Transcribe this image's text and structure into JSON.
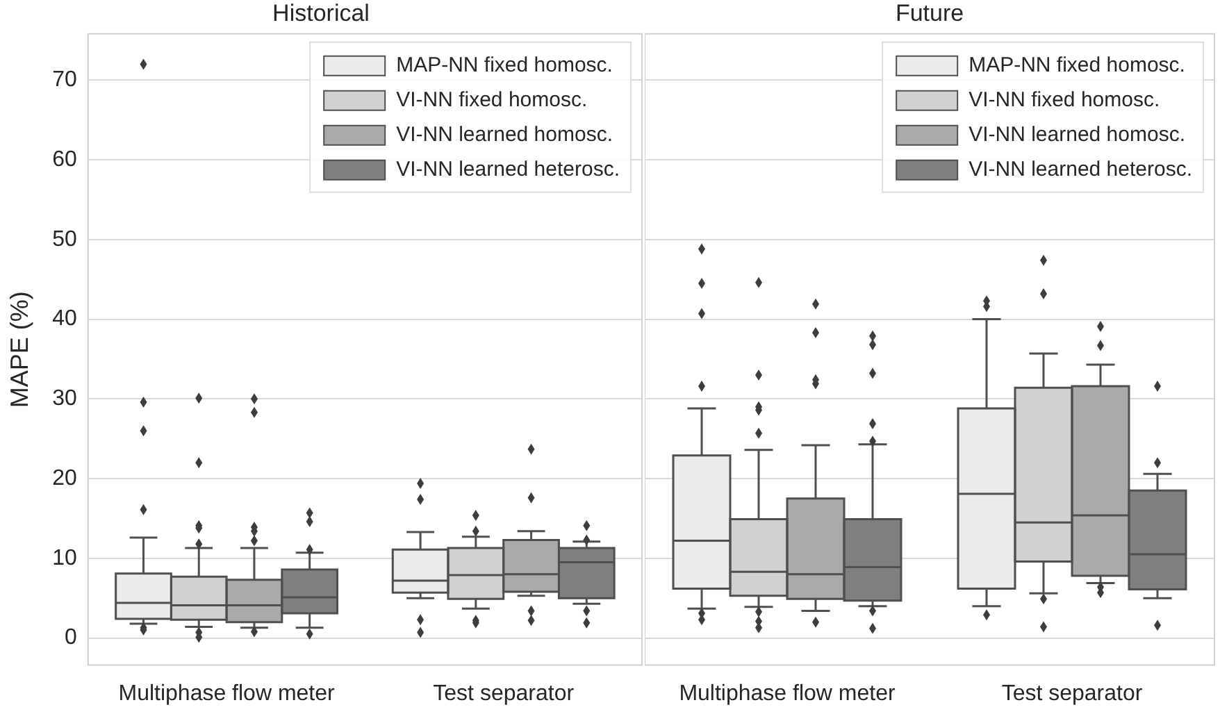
{
  "chart_data": [
    {
      "type": "box",
      "title": "Historical",
      "ylabel": "MAPE (%)",
      "categories": [
        "Multiphase flow meter",
        "Test separator"
      ],
      "ylim": [
        -3.4,
        75.8
      ],
      "yticks": [
        0,
        10,
        20,
        30,
        40,
        50,
        60,
        70
      ],
      "grid": "y",
      "legend": "top right",
      "series": [
        {
          "name": "MAP-NN fixed homosc.",
          "color": "#ebebeb",
          "boxes": [
            {
              "low": 1.8,
              "q1": 2.4,
              "median": 4.4,
              "q3": 8.1,
              "high": 12.6,
              "outliers": [
                72,
                29.6,
                26.0,
                16.1,
                1.3,
                1.0
              ]
            },
            {
              "low": 5.0,
              "q1": 5.7,
              "median": 7.2,
              "q3": 11.1,
              "high": 13.3,
              "outliers": [
                19.4,
                17.4,
                2.3,
                0.7
              ]
            }
          ]
        },
        {
          "name": "VI-NN fixed homosc.",
          "color": "#d1d1d1",
          "boxes": [
            {
              "low": 1.4,
              "q1": 2.3,
              "median": 4.1,
              "q3": 7.7,
              "high": 11.3,
              "outliers": [
                30.1,
                22.0,
                14.1,
                13.8,
                11.8,
                0.7,
                0.1
              ]
            },
            {
              "low": 3.7,
              "q1": 4.9,
              "median": 7.9,
              "q3": 11.3,
              "high": 12.7,
              "outliers": [
                15.4,
                13.4,
                2.2,
                1.9
              ]
            }
          ]
        },
        {
          "name": "VI-NN learned homosc.",
          "color": "#aaaaaa",
          "boxes": [
            {
              "low": 1.3,
              "q1": 2.0,
              "median": 4.1,
              "q3": 7.3,
              "high": 11.3,
              "outliers": [
                30.0,
                28.3,
                13.9,
                13.4,
                12.2,
                0.8
              ]
            },
            {
              "low": 5.3,
              "q1": 5.8,
              "median": 8.0,
              "q3": 12.3,
              "high": 13.4,
              "outliers": [
                23.7,
                17.6,
                3.4,
                2.2
              ]
            }
          ]
        },
        {
          "name": "VI-NN learned heterosc.",
          "color": "#7f7f7f",
          "boxes": [
            {
              "low": 1.3,
              "q1": 3.1,
              "median": 5.1,
              "q3": 8.6,
              "high": 10.7,
              "outliers": [
                15.7,
                14.6,
                11.1,
                0.5
              ]
            },
            {
              "low": 4.3,
              "q1": 5.0,
              "median": 9.5,
              "q3": 11.3,
              "high": 12.1,
              "outliers": [
                14.1,
                12.3,
                3.4,
                1.9
              ]
            }
          ]
        }
      ]
    },
    {
      "type": "box",
      "title": "Future",
      "categories": [
        "Multiphase flow meter",
        "Test separator"
      ],
      "ylim": [
        -3.4,
        75.8
      ],
      "yticks": [
        0,
        10,
        20,
        30,
        40,
        50,
        60,
        70
      ],
      "grid": "y",
      "legend": "top right",
      "tick_labels": "x",
      "series": [
        {
          "name": "MAP-NN fixed homosc.",
          "color": "#ebebeb",
          "boxes": [
            {
              "low": 3.7,
              "q1": 6.2,
              "median": 12.2,
              "q3": 22.9,
              "high": 28.8,
              "outliers": [
                48.8,
                44.5,
                40.7,
                31.6,
                3.1,
                2.3
              ]
            },
            {
              "low": 4.0,
              "q1": 6.2,
              "median": 18.1,
              "q3": 28.8,
              "high": 40.0,
              "outliers": [
                42.3,
                41.6,
                2.9
              ]
            }
          ]
        },
        {
          "name": "VI-NN fixed homosc.",
          "color": "#d1d1d1",
          "boxes": [
            {
              "low": 3.9,
              "q1": 5.3,
              "median": 8.3,
              "q3": 14.9,
              "high": 23.6,
              "outliers": [
                44.6,
                33.0,
                29.0,
                28.6,
                25.7,
                3.3,
                2.1,
                1.3
              ]
            },
            {
              "low": 5.6,
              "q1": 9.6,
              "median": 14.5,
              "q3": 31.4,
              "high": 35.7,
              "outliers": [
                47.4,
                43.2,
                4.9,
                1.4
              ]
            }
          ]
        },
        {
          "name": "VI-NN learned homosc.",
          "color": "#aaaaaa",
          "boxes": [
            {
              "low": 3.4,
              "q1": 4.9,
              "median": 8.0,
              "q3": 17.5,
              "high": 24.2,
              "outliers": [
                41.9,
                38.3,
                32.4,
                31.9,
                2.0
              ]
            },
            {
              "low": 6.9,
              "q1": 7.8,
              "median": 15.4,
              "q3": 31.6,
              "high": 34.3,
              "outliers": [
                39.1,
                36.7,
                6.4,
                5.7
              ]
            }
          ]
        },
        {
          "name": "VI-NN learned heterosc.",
          "color": "#7f7f7f",
          "boxes": [
            {
              "low": 4.0,
              "q1": 4.7,
              "median": 8.9,
              "q3": 14.9,
              "high": 24.3,
              "outliers": [
                37.9,
                36.8,
                33.2,
                26.9,
                24.7,
                3.4,
                1.2
              ]
            },
            {
              "low": 5.0,
              "q1": 6.1,
              "median": 10.5,
              "q3": 18.5,
              "high": 20.6,
              "outliers": [
                31.6,
                22.0,
                1.6
              ]
            }
          ]
        }
      ]
    }
  ]
}
